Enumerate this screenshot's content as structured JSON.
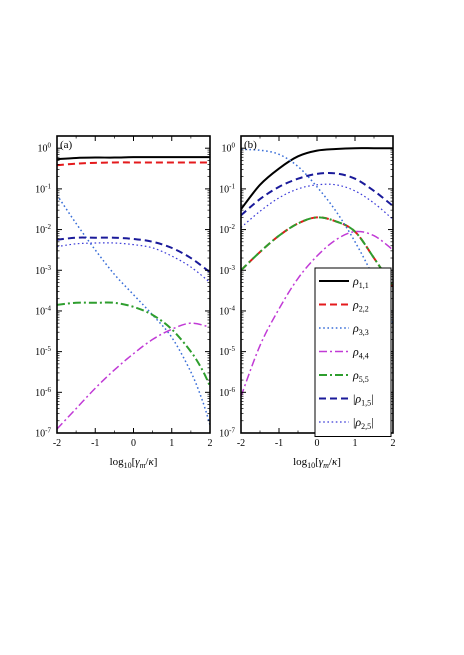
{
  "colors": {
    "rho11": "#000000",
    "rho22": "#e41a1c",
    "rho33": "#3a6fd8",
    "rho44": "#c13ad6",
    "rho55": "#2e9e2e",
    "rho15": "#1a1a9a",
    "rho25": "#3a3ad8"
  },
  "chart_data": [
    {
      "type": "line",
      "panel_label": "(a)",
      "xlabel": "log10[γm/κ]",
      "x_axis_title": {
        "prefix": "log",
        "sub": "10",
        "open": "[",
        "gamma": "γ",
        "gamma_sub": "m",
        "slash": "/",
        "kappa": "κ",
        "close": "]"
      },
      "xlim": [
        -2,
        2
      ],
      "ylim": [
        -7,
        0.3
      ],
      "yscale": "log",
      "xticks": [
        "-2",
        "-1",
        "0",
        "1",
        "2"
      ],
      "yticks": [
        {
          "base": "10",
          "exp": "0"
        },
        {
          "base": "10",
          "exp": "-1"
        },
        {
          "base": "10",
          "exp": "-2"
        },
        {
          "base": "10",
          "exp": "-3"
        },
        {
          "base": "10",
          "exp": "-4"
        },
        {
          "base": "10",
          "exp": "-5"
        },
        {
          "base": "10",
          "exp": "-6"
        },
        {
          "base": "10",
          "exp": "-7"
        }
      ],
      "series": [
        {
          "name": "ρ1,1",
          "key": "rho11",
          "dash": "solid",
          "width": 2.0,
          "x": [
            -2,
            -1.5,
            -1,
            -0.5,
            0,
            0.5,
            1,
            1.5,
            2
          ],
          "y": [
            -0.27,
            -0.24,
            -0.23,
            -0.23,
            -0.22,
            -0.22,
            -0.22,
            -0.22,
            -0.22
          ]
        },
        {
          "name": "ρ2,2",
          "key": "rho22",
          "dash": "dashed",
          "width": 2.0,
          "x": [
            -2,
            -1.5,
            -1,
            -0.5,
            0,
            0.5,
            1,
            1.5,
            2
          ],
          "y": [
            -0.42,
            -0.38,
            -0.36,
            -0.35,
            -0.35,
            -0.35,
            -0.35,
            -0.35,
            -0.35
          ]
        },
        {
          "name": "ρ3,3",
          "key": "rho33",
          "dash": "dotted",
          "width": 1.5,
          "x": [
            -2,
            -1.5,
            -1,
            -0.5,
            0,
            0.5,
            1,
            1.5,
            1.8,
            2
          ],
          "y": [
            -1.15,
            -1.85,
            -2.5,
            -3.1,
            -3.6,
            -4.1,
            -4.65,
            -5.5,
            -6.2,
            -6.8
          ]
        },
        {
          "name": "ρ4,4",
          "key": "rho44",
          "dash": "dashdot",
          "width": 1.5,
          "x": [
            -2,
            -1.5,
            -1,
            -0.5,
            0,
            0.5,
            1,
            1.5,
            2
          ],
          "y": [
            -6.9,
            -6.4,
            -5.9,
            -5.45,
            -5.05,
            -4.7,
            -4.45,
            -4.3,
            -4.4
          ]
        },
        {
          "name": "ρ5,5",
          "key": "rho55",
          "dash": "dashdot",
          "width": 2.0,
          "x": [
            -2,
            -1.5,
            -1,
            -0.5,
            0,
            0.5,
            1,
            1.5,
            1.8,
            2
          ],
          "y": [
            -3.85,
            -3.8,
            -3.8,
            -3.8,
            -3.9,
            -4.1,
            -4.45,
            -5.0,
            -5.45,
            -5.85
          ]
        },
        {
          "name": "|ρ1,5|",
          "key": "rho15",
          "dash": "dashed",
          "width": 2.0,
          "x": [
            -2,
            -1.5,
            -1,
            -0.5,
            0,
            0.5,
            1,
            1.5,
            2
          ],
          "y": [
            -2.25,
            -2.2,
            -2.2,
            -2.2,
            -2.23,
            -2.3,
            -2.45,
            -2.7,
            -3.05
          ]
        },
        {
          "name": "|ρ2,5|",
          "key": "rho25",
          "dash": "dotted",
          "width": 1.2,
          "x": [
            -2,
            -1.5,
            -1,
            -0.5,
            0,
            0.5,
            1,
            1.5,
            2
          ],
          "y": [
            -2.42,
            -2.35,
            -2.33,
            -2.33,
            -2.37,
            -2.45,
            -2.65,
            -2.92,
            -3.3
          ]
        }
      ]
    },
    {
      "type": "line",
      "panel_label": "(b)",
      "xlabel": "log10[γm/κ]",
      "x_axis_title": {
        "prefix": "log",
        "sub": "10",
        "open": "[",
        "gamma": "γ",
        "gamma_sub": "m",
        "slash": "/",
        "kappa": "κ",
        "close": "]"
      },
      "xlim": [
        -2,
        2
      ],
      "ylim": [
        -7,
        0.3
      ],
      "yscale": "log",
      "xticks": [
        "-2",
        "-1",
        "0",
        "1",
        "2"
      ],
      "yticks": [
        {
          "base": "10",
          "exp": "0"
        },
        {
          "base": "10",
          "exp": "-1"
        },
        {
          "base": "10",
          "exp": "-2"
        },
        {
          "base": "10",
          "exp": "-3"
        },
        {
          "base": "10",
          "exp": "-4"
        },
        {
          "base": "10",
          "exp": "-5"
        },
        {
          "base": "10",
          "exp": "-6"
        },
        {
          "base": "10",
          "exp": "-7"
        }
      ],
      "legend": {
        "placement": "right",
        "entries": [
          {
            "key": "rho11",
            "sym": "ρ",
            "sub": "1,1",
            "bars": false
          },
          {
            "key": "rho22",
            "sym": "ρ",
            "sub": "2,2",
            "bars": false
          },
          {
            "key": "rho33",
            "sym": "ρ",
            "sub": "3,3",
            "bars": false
          },
          {
            "key": "rho44",
            "sym": "ρ",
            "sub": "4,4",
            "bars": false
          },
          {
            "key": "rho55",
            "sym": "ρ",
            "sub": "5,5",
            "bars": false
          },
          {
            "key": "rho15",
            "sym": "ρ",
            "sub": "1,5",
            "bars": true
          },
          {
            "key": "rho25",
            "sym": "ρ",
            "sub": "2,5",
            "bars": true
          }
        ]
      },
      "series": [
        {
          "name": "ρ1,1",
          "key": "rho11",
          "dash": "solid",
          "width": 2.0,
          "x": [
            -2,
            -1.5,
            -1,
            -0.5,
            0,
            0.5,
            1,
            1.5,
            2
          ],
          "y": [
            -1.5,
            -0.9,
            -0.5,
            -0.2,
            -0.06,
            -0.02,
            0,
            0,
            0
          ]
        },
        {
          "name": "ρ2,2",
          "key": "rho22",
          "dash": "dashed",
          "width": 2.0,
          "x": [
            -2,
            -1.5,
            -1,
            -0.5,
            0,
            0.5,
            1,
            1.5,
            2
          ],
          "y": [
            -3.0,
            -2.55,
            -2.15,
            -1.85,
            -1.7,
            -1.8,
            -2.05,
            -2.7,
            -3.4
          ]
        },
        {
          "name": "ρ3,3",
          "key": "rho33",
          "dash": "dotted",
          "width": 1.5,
          "x": [
            -2,
            -1.5,
            -1,
            -0.5,
            0,
            0.5,
            1,
            1.5,
            2
          ],
          "y": [
            -0.03,
            -0.05,
            -0.15,
            -0.45,
            -0.95,
            -1.55,
            -2.3,
            -3.2,
            -4.3
          ]
        },
        {
          "name": "ρ4,4",
          "key": "rho44",
          "dash": "dashdot",
          "width": 1.5,
          "x": [
            -2,
            -1.5,
            -1,
            -0.5,
            0,
            0.5,
            1,
            1.5,
            2
          ],
          "y": [
            -6.1,
            -4.85,
            -3.95,
            -3.2,
            -2.65,
            -2.25,
            -2.05,
            -2.15,
            -2.5
          ]
        },
        {
          "name": "ρ5,5",
          "key": "rho55",
          "dash": "dashdot",
          "width": 2.0,
          "x": [
            -2,
            -1.5,
            -1,
            -0.5,
            0,
            0.5,
            1,
            1.5,
            2
          ],
          "y": [
            -3.0,
            -2.55,
            -2.15,
            -1.85,
            -1.7,
            -1.8,
            -2.05,
            -2.7,
            -3.4
          ]
        },
        {
          "name": "|ρ1,5|",
          "key": "rho15",
          "dash": "dashed",
          "width": 2.0,
          "x": [
            -2,
            -1.5,
            -1,
            -0.5,
            0,
            0.5,
            1,
            1.5,
            2
          ],
          "y": [
            -1.65,
            -1.25,
            -0.95,
            -0.75,
            -0.63,
            -0.62,
            -0.75,
            -1.05,
            -1.42
          ]
        },
        {
          "name": "|ρ2,5|",
          "key": "rho25",
          "dash": "dotted",
          "width": 1.2,
          "x": [
            -2,
            -1.5,
            -1,
            -0.5,
            0,
            0.5,
            1,
            1.5,
            2
          ],
          "y": [
            -1.95,
            -1.55,
            -1.22,
            -1.0,
            -0.9,
            -0.9,
            -1.05,
            -1.35,
            -1.75
          ]
        }
      ]
    }
  ]
}
